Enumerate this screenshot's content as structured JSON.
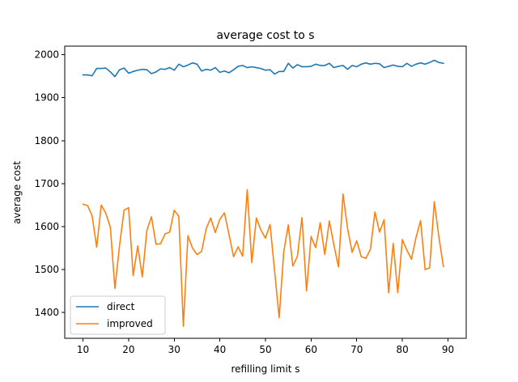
{
  "chart_data": {
    "type": "line",
    "title": "average cost to s",
    "xlabel": "refilling limit s",
    "ylabel": "average cost",
    "xlim": [
      6,
      94
    ],
    "ylim": [
      1340,
      2020
    ],
    "xticks": [
      10,
      20,
      30,
      40,
      50,
      60,
      70,
      80,
      90
    ],
    "yticks": [
      1400,
      1500,
      1600,
      1700,
      1800,
      1900,
      2000
    ],
    "grid": false,
    "legend": "lower-left",
    "x": [
      10,
      11,
      12,
      13,
      14,
      15,
      16,
      17,
      18,
      19,
      20,
      21,
      22,
      23,
      24,
      25,
      26,
      27,
      28,
      29,
      30,
      31,
      32,
      33,
      34,
      35,
      36,
      37,
      38,
      39,
      40,
      41,
      42,
      43,
      44,
      45,
      46,
      47,
      48,
      49,
      50,
      51,
      52,
      53,
      54,
      55,
      56,
      57,
      58,
      59,
      60,
      61,
      62,
      63,
      64,
      65,
      66,
      67,
      68,
      69,
      70,
      71,
      72,
      73,
      74,
      75,
      76,
      77,
      78,
      79,
      80,
      81,
      82,
      83,
      84,
      85,
      86,
      87,
      88,
      89
    ],
    "series": [
      {
        "name": "direct",
        "color": "#1f77b4",
        "values": [
          1953,
          1953,
          1951,
          1968,
          1968,
          1969,
          1960,
          1949,
          1965,
          1969,
          1957,
          1961,
          1964,
          1966,
          1965,
          1956,
          1960,
          1967,
          1966,
          1970,
          1964,
          1978,
          1972,
          1976,
          1981,
          1978,
          1962,
          1966,
          1964,
          1970,
          1959,
          1962,
          1958,
          1965,
          1973,
          1975,
          1970,
          1972,
          1970,
          1968,
          1964,
          1965,
          1955,
          1961,
          1961,
          1980,
          1969,
          1977,
          1972,
          1972,
          1973,
          1978,
          1975,
          1975,
          1980,
          1970,
          1973,
          1975,
          1966,
          1975,
          1972,
          1978,
          1981,
          1978,
          1980,
          1979,
          1970,
          1973,
          1976,
          1973,
          1972,
          1980,
          1973,
          1978,
          1981,
          1978,
          1982,
          1987,
          1982,
          1980
        ]
      },
      {
        "name": "improved",
        "color": "#ff7f0e",
        "values": [
          1652,
          1649,
          1625,
          1552,
          1650,
          1631,
          1598,
          1456,
          1555,
          1638,
          1644,
          1486,
          1555,
          1483,
          1591,
          1623,
          1559,
          1560,
          1583,
          1587,
          1638,
          1624,
          1368,
          1579,
          1550,
          1535,
          1542,
          1595,
          1620,
          1586,
          1617,
          1632,
          1582,
          1530,
          1553,
          1531,
          1686,
          1516,
          1620,
          1592,
          1573,
          1605,
          1497,
          1388,
          1541,
          1604,
          1508,
          1531,
          1621,
          1450,
          1577,
          1551,
          1609,
          1535,
          1613,
          1557,
          1506,
          1676,
          1595,
          1540,
          1567,
          1530,
          1526,
          1547,
          1634,
          1587,
          1616,
          1446,
          1561,
          1446,
          1570,
          1545,
          1524,
          1575,
          1614,
          1500,
          1504,
          1658,
          1577,
          1507
        ]
      }
    ]
  }
}
